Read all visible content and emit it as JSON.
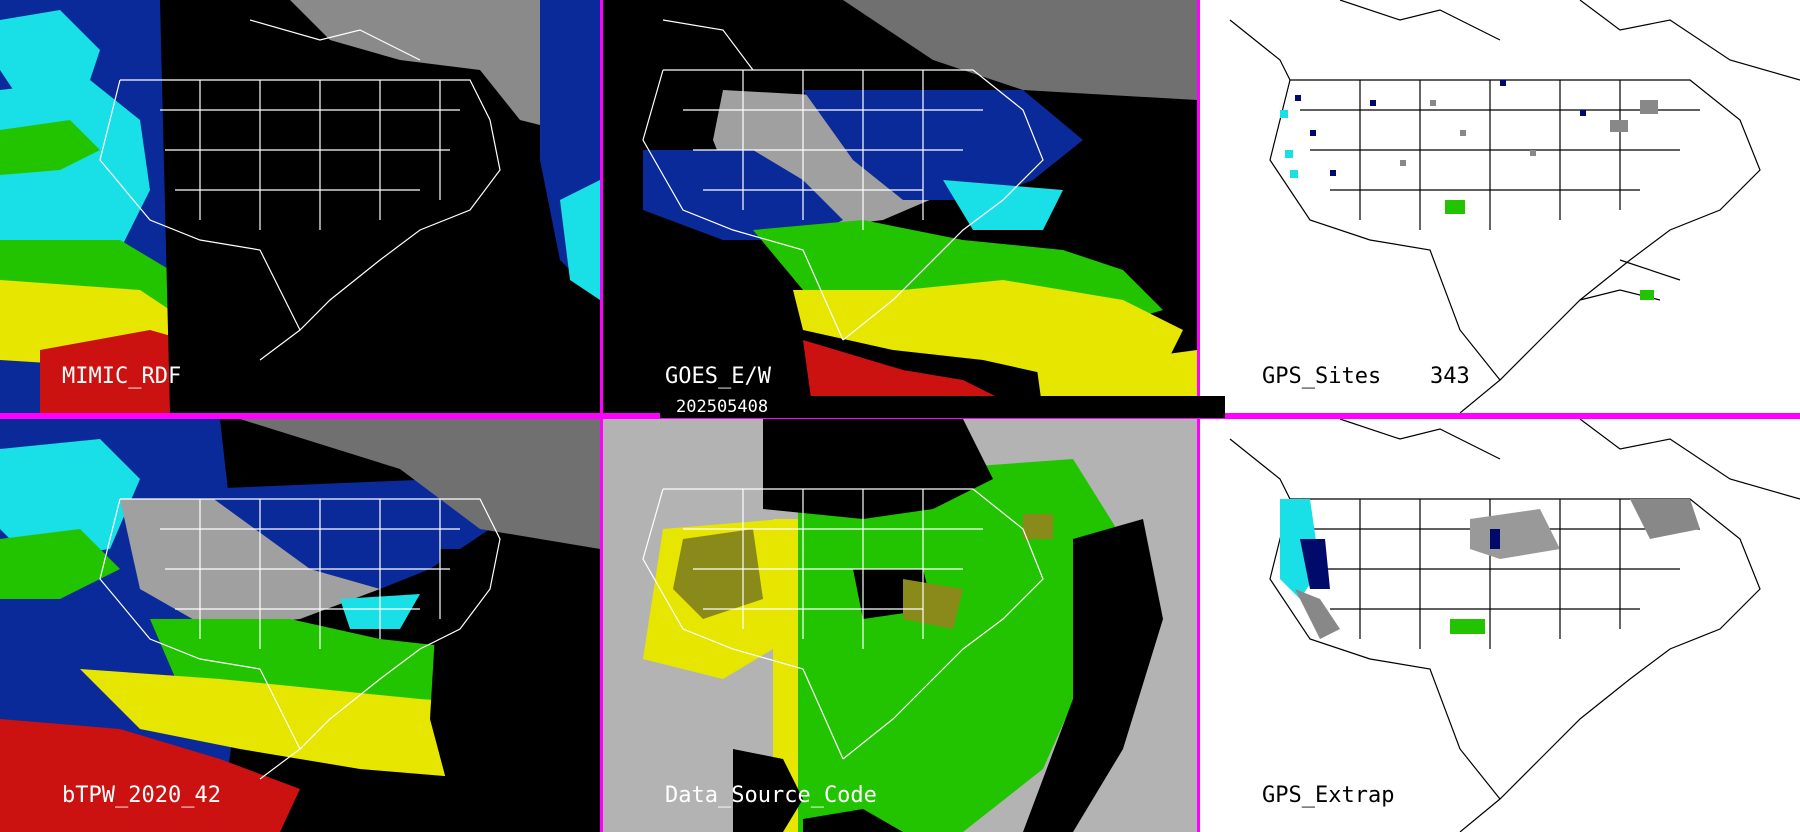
{
  "timestamp": "202505408",
  "panels": [
    {
      "id": "mimic",
      "label": "MIMIC_RDF",
      "style": "sat-left"
    },
    {
      "id": "goes",
      "label": "GOES_E/W",
      "style": "sat-mid"
    },
    {
      "id": "gps",
      "label": "GPS_Sites",
      "count": "343",
      "style": "white-sites"
    },
    {
      "id": "blend",
      "label": "bTPW_2020_42",
      "style": "sat-blend"
    },
    {
      "id": "source",
      "label": "Data_Source_Code",
      "style": "source"
    },
    {
      "id": "gpsextrap",
      "label": "GPS_Extrap",
      "style": "white-extrap"
    }
  ],
  "colors": {
    "divider": "#ff00ff",
    "red": "#cc1111",
    "yellow": "#e6e600",
    "green": "#22c400",
    "cyan": "#19e0e6",
    "blue": "#0a2a9a",
    "navy": "#000a6a",
    "gray": "#b3b3b3",
    "olive": "#8a8a1a"
  }
}
